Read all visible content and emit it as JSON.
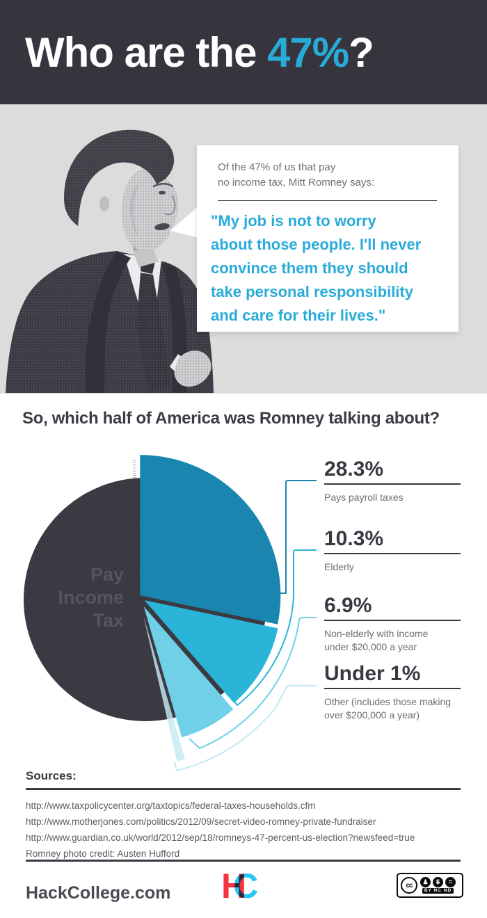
{
  "header": {
    "title_prefix": "Who are the ",
    "title_highlight": "47%",
    "title_suffix": "?",
    "bg_color": "#36343d",
    "accent_color": "#29abd8"
  },
  "hero": {
    "intro_lines": [
      "Of the 47% of us that pay",
      "no income tax, Mitt Romney says:"
    ],
    "quote_lines": [
      "\"My job is not to worry",
      "about those people. I'll never",
      "convince them they should",
      "take personal responsibility",
      "and care for their lives.\""
    ],
    "photo_subject": "Mitt Romney halftone photo"
  },
  "chart_section": {
    "heading": "So, which half of America was Romney talking about?"
  },
  "chart_data": {
    "type": "pie",
    "title": "So, which half of America was Romney talking about?",
    "center_label": "Pay Income Tax",
    "center_label_lines": [
      "Pay",
      "Income",
      "Tax"
    ],
    "legend_position": "right-callouts",
    "segments": [
      {
        "label": "Pay Income Tax",
        "value_pct": 53.6,
        "display": "",
        "color": "#3b3a42"
      },
      {
        "label": "Pays payroll taxes",
        "value_pct": 28.3,
        "display": "28.3%",
        "color": "#1a86b0",
        "label_lines": [
          "Pays payroll taxes"
        ]
      },
      {
        "label": "Elderly",
        "value_pct": 10.3,
        "display": "10.3%",
        "color": "#2ab5d8",
        "label_lines": [
          "Elderly"
        ]
      },
      {
        "label": "Non-elderly with income under $20,000 a year",
        "value_pct": 6.9,
        "display": "6.9%",
        "color": "#6fd0e8",
        "label_lines": [
          "Non-elderly with income",
          "under $20,000 a year"
        ]
      },
      {
        "label": "Other (includes those making over $200,000 a year)",
        "value_pct": 0.9,
        "display": "Under 1%",
        "color": "#c3e9f3",
        "label_lines": [
          "Other (includes those making",
          "over $200,000 a year)"
        ]
      }
    ]
  },
  "sources": {
    "heading": "Sources:",
    "items": [
      "http://www.taxpolicycenter.org/taxtopics/federal-taxes-households.cfm",
      "http://www.motherjones.com/politics/2012/09/secret-video-romney-private-fundraiser",
      "http://www.guardian.co.uk/world/2012/sep/18/romneys-47-percent-us-election?newsfeed=true",
      "Romney photo credit: Austen Hufford"
    ]
  },
  "footer": {
    "site": "HackCollege.com",
    "logo_letters": {
      "h": "H",
      "c": "C"
    },
    "license": {
      "cc": "cc",
      "terms": "BY NC ND"
    }
  }
}
